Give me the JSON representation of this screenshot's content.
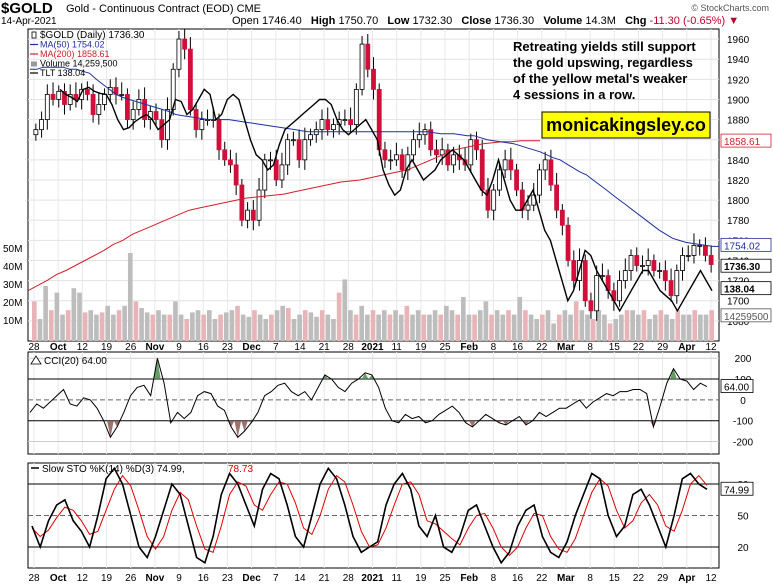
{
  "header": {
    "ticker": "$GOLD",
    "description": "Gold - Continuous Contract (EOD) CME",
    "watermark": "© StockCharts.com",
    "date": "14-Apr-2021",
    "open_label": "Open",
    "open": "1746.40",
    "high_label": "High",
    "high": "1750.70",
    "low_label": "Low",
    "low": "1732.30",
    "close_label": "Close",
    "close": "1736.30",
    "volume_label": "Volume",
    "volume": "14.3M",
    "chg_label": "Chg",
    "chg": "-11.30 (-0.65%)",
    "chg_icon": "triangle-down-icon",
    "chg_color": "#c0002a"
  },
  "legend": [
    {
      "label": "$GOLD (Daily) 1736.30",
      "color": "#000000",
      "icon": "candle-icon"
    },
    {
      "label": "MA(50) 1754.02",
      "color": "#1f2f9e",
      "icon": "line-icon"
    },
    {
      "label": "MA(200) 1858.61",
      "color": "#d11f2a",
      "icon": "line-icon"
    },
    {
      "label": "Volume 14,259,500",
      "color": "#999999",
      "icon": "bar-icon"
    },
    {
      "label": "TLT 138.04",
      "color": "#000000",
      "icon": "line-icon"
    }
  ],
  "annotation": {
    "text_lines": [
      "Retreating yields still support",
      "the gold upswing, regardless",
      "of the yellow metal's weaker",
      "4 sessions in a row."
    ],
    "brand": "monicakingsley.co",
    "brand_bg": "#ffff00"
  },
  "price_axis_labels": {
    "ma200": "1858.61",
    "ma50": "1754.02",
    "close": "1736.30",
    "tlt": "138.04",
    "volume": "14259500"
  },
  "volume_axis": [
    "50M",
    "40M",
    "30M",
    "20M",
    "10M"
  ],
  "x_labels": [
    "28",
    "Oct",
    "12",
    "19",
    "26",
    "Nov",
    "9",
    "16",
    "23",
    "Dec",
    "7",
    "14",
    "21",
    "28",
    "2021",
    "11",
    "19",
    "25",
    "Feb",
    "8",
    "16",
    "22",
    "Mar",
    "8",
    "15",
    "22",
    "29",
    "Apr",
    "12"
  ],
  "cci": {
    "title": "CCI(20) 64.00",
    "value_label": "64.00",
    "levels": [
      "200",
      "100",
      "0",
      "-100",
      "-200"
    ]
  },
  "sto": {
    "title_prefix": "Slow STO %K(14) %D(3) 74.99,",
    "title_red": "78.73",
    "value_label": "74.99",
    "levels": [
      "80",
      "50",
      "20"
    ]
  },
  "chart_data": [
    {
      "type": "candlestick",
      "title": "$GOLD (Daily) 1736.30",
      "ylim": [
        1660,
        1970
      ],
      "yticks": [
        1680,
        1700,
        1720,
        1740,
        1760,
        1780,
        1800,
        1820,
        1840,
        1860,
        1880,
        1900,
        1920,
        1940,
        1960
      ],
      "series": [
        {
          "name": "$GOLD (Daily) 1736.30",
          "values": [
            1870,
            1880,
            1905,
            1900,
            1908,
            1895,
            1905,
            1900,
            1910,
            1905,
            1885,
            1895,
            1905,
            1912,
            1905,
            1905,
            1880,
            1890,
            1900,
            1880,
            1888,
            1880,
            1860,
            1890,
            1930,
            1960,
            1950,
            1890,
            1870,
            1880,
            1880,
            1880,
            1850,
            1840,
            1835,
            1815,
            1780,
            1790,
            1780,
            1810,
            1840,
            1840,
            1820,
            1835,
            1860,
            1860,
            1840,
            1860,
            1865,
            1870,
            1880,
            1870,
            1875,
            1880,
            1880,
            1875,
            1910,
            1955,
            1930,
            1910,
            1850,
            1840,
            1840,
            1845,
            1830,
            1845,
            1860,
            1865,
            1870,
            1850,
            1845,
            1850,
            1835,
            1845,
            1840,
            1835,
            1860,
            1850,
            1810,
            1790,
            1810,
            1830,
            1840,
            1830,
            1810,
            1790,
            1795,
            1805,
            1830,
            1840,
            1815,
            1790,
            1775,
            1740,
            1720,
            1740,
            1700,
            1690,
            1725,
            1725,
            1710,
            1700,
            1720,
            1730,
            1745,
            1735,
            1735,
            1740,
            1730,
            1730,
            1720,
            1705,
            1730,
            1745,
            1745,
            1755,
            1755,
            1745,
            1736
          ]
        },
        {
          "name": "MA(50) 1754.02",
          "values": [
            1930,
            1930,
            1932,
            1932,
            1932,
            1932,
            1930,
            1930,
            1928,
            1926,
            1920,
            1915,
            1910,
            1905,
            1902,
            1900,
            1898,
            1896,
            1894,
            1892,
            1890,
            1888,
            1885,
            1884,
            1883,
            1882,
            1881,
            1880,
            1880,
            1880,
            1880,
            1879,
            1878,
            1877,
            1876,
            1875,
            1874,
            1873,
            1872,
            1871,
            1870,
            1869,
            1868,
            1868,
            1868,
            1868,
            1868,
            1868,
            1868,
            1868,
            1868,
            1868,
            1868,
            1868,
            1868,
            1868,
            1868,
            1868,
            1868,
            1868,
            1868,
            1867,
            1866,
            1866,
            1866,
            1865,
            1864,
            1864,
            1862,
            1860,
            1859,
            1858,
            1857,
            1856,
            1854,
            1852,
            1850,
            1848,
            1845,
            1842,
            1840,
            1836,
            1832,
            1828,
            1825,
            1820,
            1815,
            1810,
            1805,
            1800,
            1795,
            1790,
            1785,
            1780,
            1775,
            1770,
            1766,
            1762,
            1760,
            1758,
            1757,
            1756,
            1755,
            1754,
            1754
          ]
        },
        {
          "name": "MA(200) 1858.61",
          "values": [
            1710,
            1715,
            1720,
            1726,
            1730,
            1735,
            1740,
            1745,
            1750,
            1756,
            1760,
            1766,
            1770,
            1774,
            1778,
            1782,
            1786,
            1790,
            1792,
            1794,
            1796,
            1798,
            1800,
            1802,
            1803,
            1804,
            1805,
            1806,
            1808,
            1810,
            1812,
            1814,
            1816,
            1818,
            1819,
            1820,
            1822,
            1824,
            1826,
            1828,
            1830,
            1834,
            1838,
            1842,
            1846,
            1850,
            1852,
            1854,
            1856,
            1857,
            1858,
            1858,
            1859,
            1859,
            1859
          ]
        }
      ],
      "volume": [
        18,
        10,
        25,
        14,
        22,
        12,
        14,
        24,
        22,
        13,
        14,
        12,
        13,
        16,
        12,
        14,
        16,
        40,
        18,
        15,
        13,
        12,
        14,
        12,
        12,
        18,
        12,
        10,
        13,
        14,
        12,
        14,
        10,
        12,
        13,
        14,
        16,
        12,
        11,
        14,
        12,
        10,
        12,
        14,
        16,
        15,
        10,
        12,
        14,
        13,
        11,
        14,
        12,
        10,
        22,
        28,
        14,
        12,
        16,
        12,
        14,
        12,
        14,
        12,
        14,
        12,
        16,
        12,
        14,
        12,
        12,
        14,
        12,
        16,
        14,
        12,
        20,
        12,
        12,
        14,
        18,
        12,
        14,
        12,
        14,
        12,
        20,
        14,
        12,
        10,
        12,
        14,
        8,
        12,
        14,
        12,
        18,
        14,
        12,
        10,
        14,
        12,
        8,
        10,
        12,
        14,
        14,
        12,
        14,
        10,
        12,
        14,
        12,
        10,
        14,
        12,
        12,
        14,
        12,
        12,
        14
      ],
      "tlt": [
        1910,
        1905,
        1902,
        1898,
        1910,
        1912,
        1908,
        1906,
        1905,
        1895,
        1880,
        1870,
        1872,
        1878,
        1882,
        1885,
        1880,
        1870,
        1875,
        1880,
        1900,
        1898,
        1885,
        1890,
        1900,
        1910,
        1905,
        1880,
        1885,
        1900,
        1905,
        1900,
        1880,
        1860,
        1845,
        1840,
        1830,
        1835,
        1855,
        1870,
        1875,
        1880,
        1885,
        1890,
        1895,
        1900,
        1900,
        1895,
        1880,
        1870,
        1865,
        1870,
        1875,
        1880,
        1870,
        1860,
        1830,
        1815,
        1805,
        1810,
        1830,
        1840,
        1830,
        1820,
        1825,
        1830,
        1840,
        1845,
        1850,
        1845,
        1840,
        1830,
        1820,
        1810,
        1805,
        1820,
        1840,
        1820,
        1800,
        1790,
        1790,
        1800,
        1810,
        1790,
        1770,
        1760,
        1740,
        1720,
        1700,
        1710,
        1730,
        1750,
        1745,
        1730,
        1720,
        1710,
        1700,
        1690,
        1700,
        1710,
        1720,
        1730,
        1730,
        1720,
        1710,
        1705,
        1700,
        1690,
        1700,
        1710,
        1720,
        1730,
        1720,
        1710
      ]
    },
    {
      "type": "line",
      "title": "CCI(20) 64.00",
      "ylim": [
        -260,
        230
      ],
      "series": [
        {
          "name": "CCI(20) 64.00",
          "values": [
            -60,
            -20,
            -40,
            -10,
            20,
            50,
            -20,
            -30,
            10,
            0,
            -40,
            -100,
            -180,
            -130,
            -60,
            20,
            60,
            70,
            20,
            200,
            80,
            -110,
            -60,
            -90,
            -60,
            20,
            40,
            30,
            -30,
            -50,
            -130,
            -180,
            -150,
            -110,
            -60,
            20,
            40,
            70,
            80,
            40,
            20,
            40,
            0,
            60,
            120,
            100,
            60,
            40,
            80,
            100,
            130,
            120,
            60,
            -40,
            -100,
            -110,
            -70,
            -90,
            -80,
            -110,
            -100,
            -70,
            -50,
            -30,
            -60,
            -110,
            -130,
            -100,
            -70,
            -90,
            -110,
            -120,
            -100,
            -80,
            -120,
            -100,
            -60,
            -80,
            -60,
            -40,
            -40,
            -20,
            0,
            -40,
            -10,
            10,
            30,
            20,
            40,
            40,
            50,
            50,
            30,
            -130,
            -30,
            80,
            150,
            100,
            90,
            50,
            80,
            64
          ]
        }
      ]
    },
    {
      "type": "line",
      "title": "Slow STO %K(14) %D(3) 74.99, 78.73",
      "ylim": [
        0,
        100
      ],
      "series": [
        {
          "name": "%K(14) 74.99",
          "values": [
            40,
            20,
            45,
            60,
            65,
            45,
            35,
            20,
            50,
            85,
            95,
            80,
            50,
            20,
            10,
            30,
            55,
            80,
            70,
            40,
            10,
            5,
            30,
            70,
            90,
            80,
            60,
            40,
            75,
            90,
            85,
            60,
            30,
            20,
            50,
            80,
            95,
            85,
            60,
            30,
            15,
            20,
            25,
            60,
            80,
            90,
            75,
            40,
            30,
            50,
            20,
            15,
            30,
            55,
            60,
            40,
            20,
            5,
            15,
            40,
            55,
            60,
            30,
            15,
            10,
            25,
            50,
            70,
            90,
            85,
            50,
            30,
            40,
            70,
            75,
            60,
            40,
            20,
            50,
            85,
            90,
            80,
            74.99
          ]
        },
        {
          "name": "%D(3) 78.73",
          "values": [
            38,
            30,
            36,
            48,
            58,
            55,
            45,
            32,
            35,
            55,
            75,
            88,
            78,
            55,
            30,
            18,
            30,
            55,
            72,
            65,
            40,
            18,
            15,
            40,
            70,
            82,
            78,
            60,
            55,
            70,
            82,
            80,
            62,
            38,
            32,
            50,
            75,
            88,
            82,
            60,
            35,
            20,
            22,
            38,
            60,
            80,
            82,
            70,
            45,
            42,
            35,
            28,
            22,
            38,
            50,
            52,
            38,
            20,
            12,
            20,
            38,
            52,
            50,
            30,
            18,
            15,
            28,
            50,
            72,
            85,
            78,
            55,
            38,
            45,
            62,
            70,
            60,
            40,
            35,
            55,
            80,
            88,
            78.73
          ]
        }
      ]
    }
  ]
}
